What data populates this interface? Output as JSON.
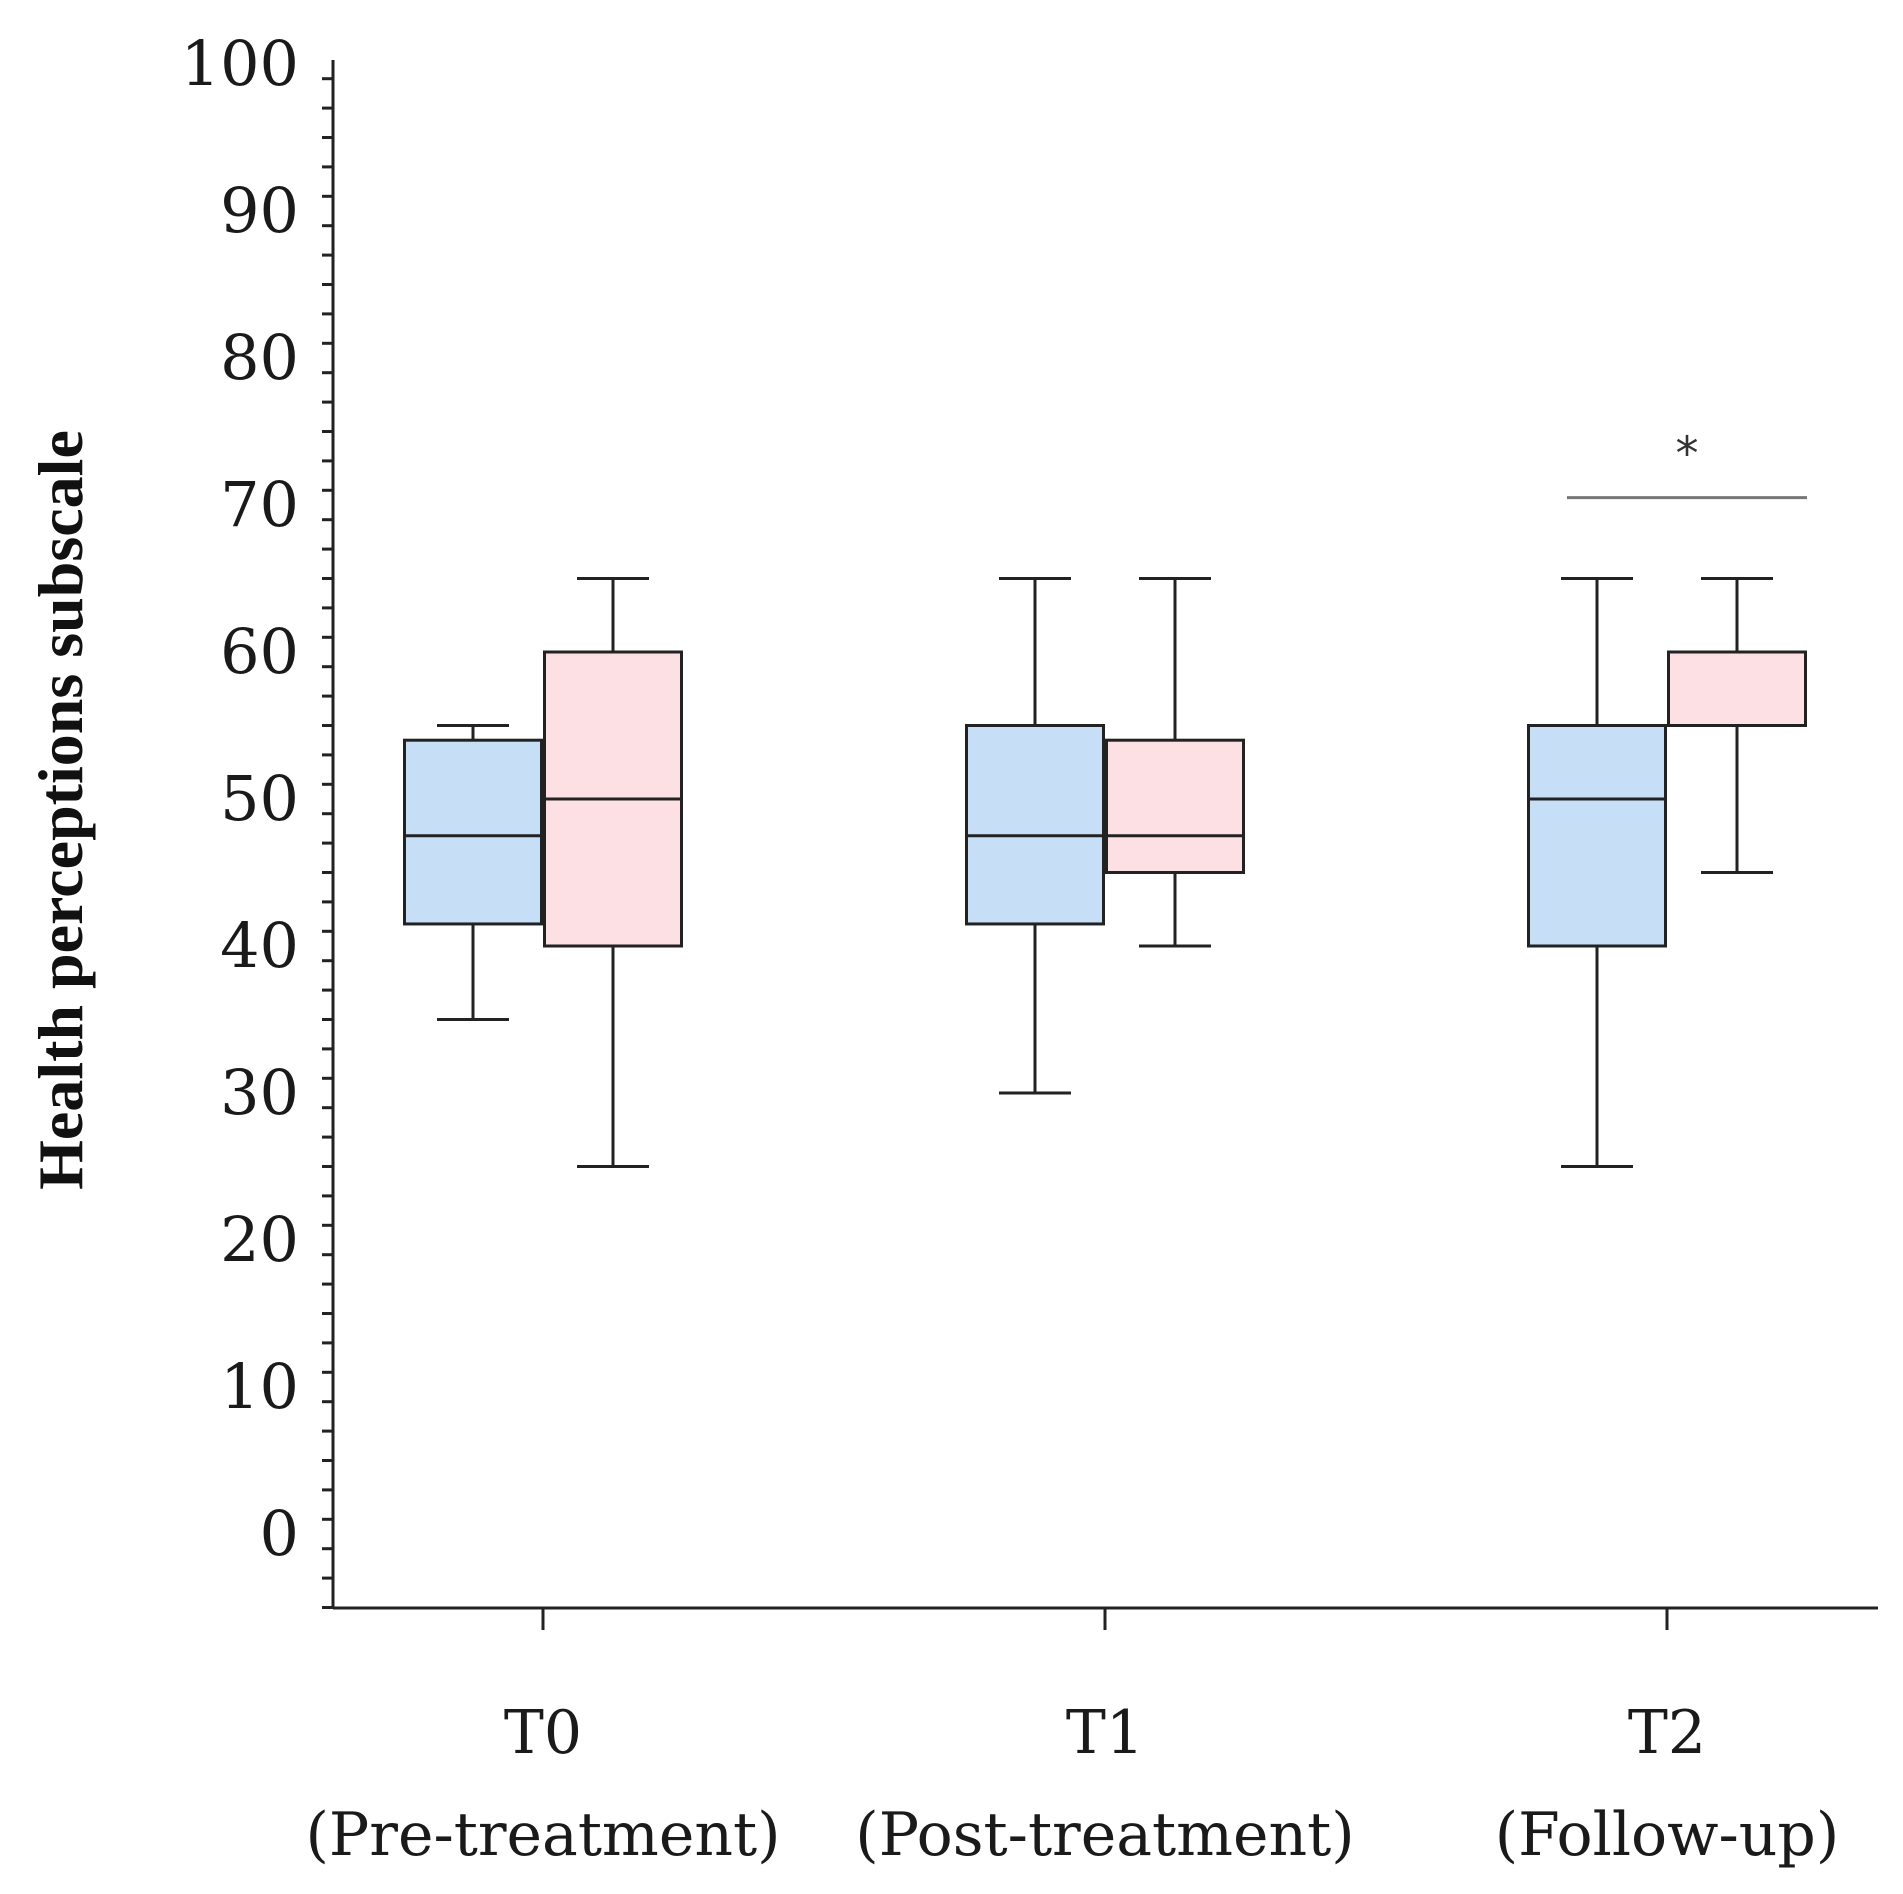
{
  "chart_data": {
    "type": "box",
    "title": "",
    "ylabel": "Health perceptions subscale",
    "xlabel": "",
    "ylim": [
      -5,
      100
    ],
    "yticks": [
      0,
      10,
      20,
      30,
      40,
      50,
      60,
      70,
      80,
      90,
      100
    ],
    "categories": [
      {
        "line1": "T0",
        "line2": "(Pre-treatment)"
      },
      {
        "line1": "T1",
        "line2": "(Post-treatment)"
      },
      {
        "line1": "T2",
        "line2": "(Follow-up)"
      }
    ],
    "series": [
      {
        "color": "#c6dff6",
        "boxes": [
          {
            "min": 35,
            "q1": 41.5,
            "median": 47.5,
            "q3": 54,
            "max": 55
          },
          {
            "min": 30,
            "q1": 41.5,
            "median": 47.5,
            "q3": 55,
            "max": 65
          },
          {
            "min": 25,
            "q1": 40,
            "median": 50,
            "q3": 55,
            "max": 65
          }
        ]
      },
      {
        "color": "#fde0e3",
        "boxes": [
          {
            "min": 25,
            "q1": 40,
            "median": 50,
            "q3": 60,
            "max": 65
          },
          {
            "min": 40,
            "q1": 45,
            "median": 47.5,
            "q3": 54,
            "max": 65
          },
          {
            "min": 45,
            "q1": 55,
            "median": 55,
            "q3": 60,
            "max": 65
          }
        ]
      }
    ],
    "annotations": [
      {
        "text": "*",
        "category": 2,
        "y": 70.5
      }
    ],
    "grid": false,
    "legend": "none"
  }
}
